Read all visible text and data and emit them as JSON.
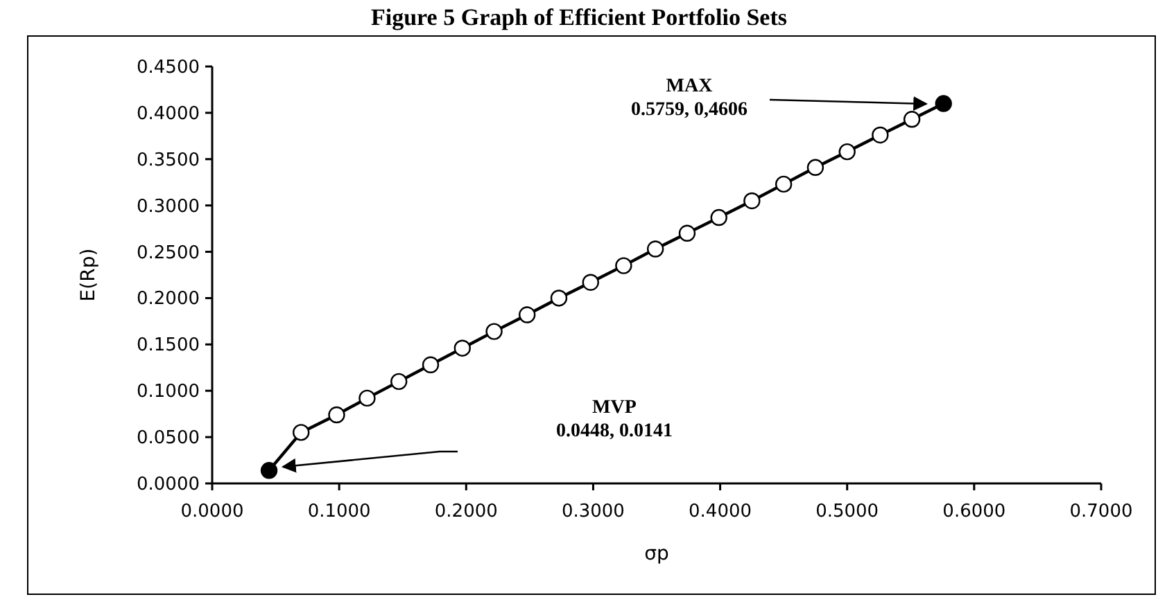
{
  "chart_data": {
    "type": "line",
    "title": "Figure 5 Graph of Efficient Portfolio Sets",
    "xlabel": "σp",
    "ylabel": "E(Rp)",
    "xlim": [
      0,
      0.7
    ],
    "xticks": [
      {
        "value": 0,
        "label": "0.0000"
      },
      {
        "value": 0.1,
        "label": "0.1000"
      },
      {
        "value": 0.2,
        "label": "0.2000"
      },
      {
        "value": 0.3,
        "label": "0.3000"
      },
      {
        "value": 0.4,
        "label": "0.4000"
      },
      {
        "value": 0.5,
        "label": "0.5000"
      },
      {
        "value": 0.6,
        "label": "0.6000"
      },
      {
        "value": 0.7,
        "label": "0.7000"
      }
    ],
    "ylim": [
      0,
      0.45
    ],
    "yticks": [
      {
        "value": 0,
        "label": "0.0000"
      },
      {
        "value": 0.05,
        "label": "0.0500"
      },
      {
        "value": 0.1,
        "label": "0.1000"
      },
      {
        "value": 0.15,
        "label": "0.1500"
      },
      {
        "value": 0.2,
        "label": "0.2000"
      },
      {
        "value": 0.25,
        "label": "0.2500"
      },
      {
        "value": 0.3,
        "label": "0.3000"
      },
      {
        "value": 0.35,
        "label": "0.3500"
      },
      {
        "value": 0.4,
        "label": "0.4000"
      },
      {
        "value": 0.45,
        "label": "0.4500"
      }
    ],
    "series": [
      {
        "color": "#000000",
        "marker": "none",
        "line_style": "solid",
        "x": [
          0.0448,
          0.07,
          0.098,
          0.122,
          0.147,
          0.172,
          0.197,
          0.222,
          0.248,
          0.273,
          0.298,
          0.324,
          0.349,
          0.374,
          0.399,
          0.425,
          0.45,
          0.475,
          0.5,
          0.526,
          0.551,
          0.5759
        ],
        "values": [
          0.014,
          0.055,
          0.074,
          0.092,
          0.11,
          0.128,
          0.146,
          0.164,
          0.182,
          0.2,
          0.217,
          0.235,
          0.253,
          0.27,
          0.287,
          0.305,
          0.323,
          0.341,
          0.358,
          0.376,
          0.393,
          0.41
        ]
      },
      {
        "type": "scatter",
        "color": "#ffffff",
        "marker": "circle",
        "x": [
          0.07,
          0.098,
          0.122,
          0.147,
          0.172,
          0.197,
          0.222,
          0.248,
          0.273,
          0.298,
          0.324,
          0.349,
          0.374,
          0.399,
          0.425,
          0.45,
          0.475,
          0.5,
          0.526,
          0.551
        ],
        "values": [
          0.055,
          0.074,
          0.092,
          0.11,
          0.128,
          0.146,
          0.164,
          0.182,
          0.2,
          0.217,
          0.235,
          0.253,
          0.27,
          0.287,
          0.305,
          0.323,
          0.341,
          0.358,
          0.376,
          0.393
        ]
      },
      {
        "type": "scatter",
        "color": "#000000",
        "marker": "circle",
        "x": [
          0.0448,
          0.5759
        ],
        "values": [
          0.014,
          0.41
        ]
      }
    ],
    "annotations": [
      "MVP\n0.0448, 0.0141",
      "MAX\n0.5759, 0,4606"
    ]
  }
}
